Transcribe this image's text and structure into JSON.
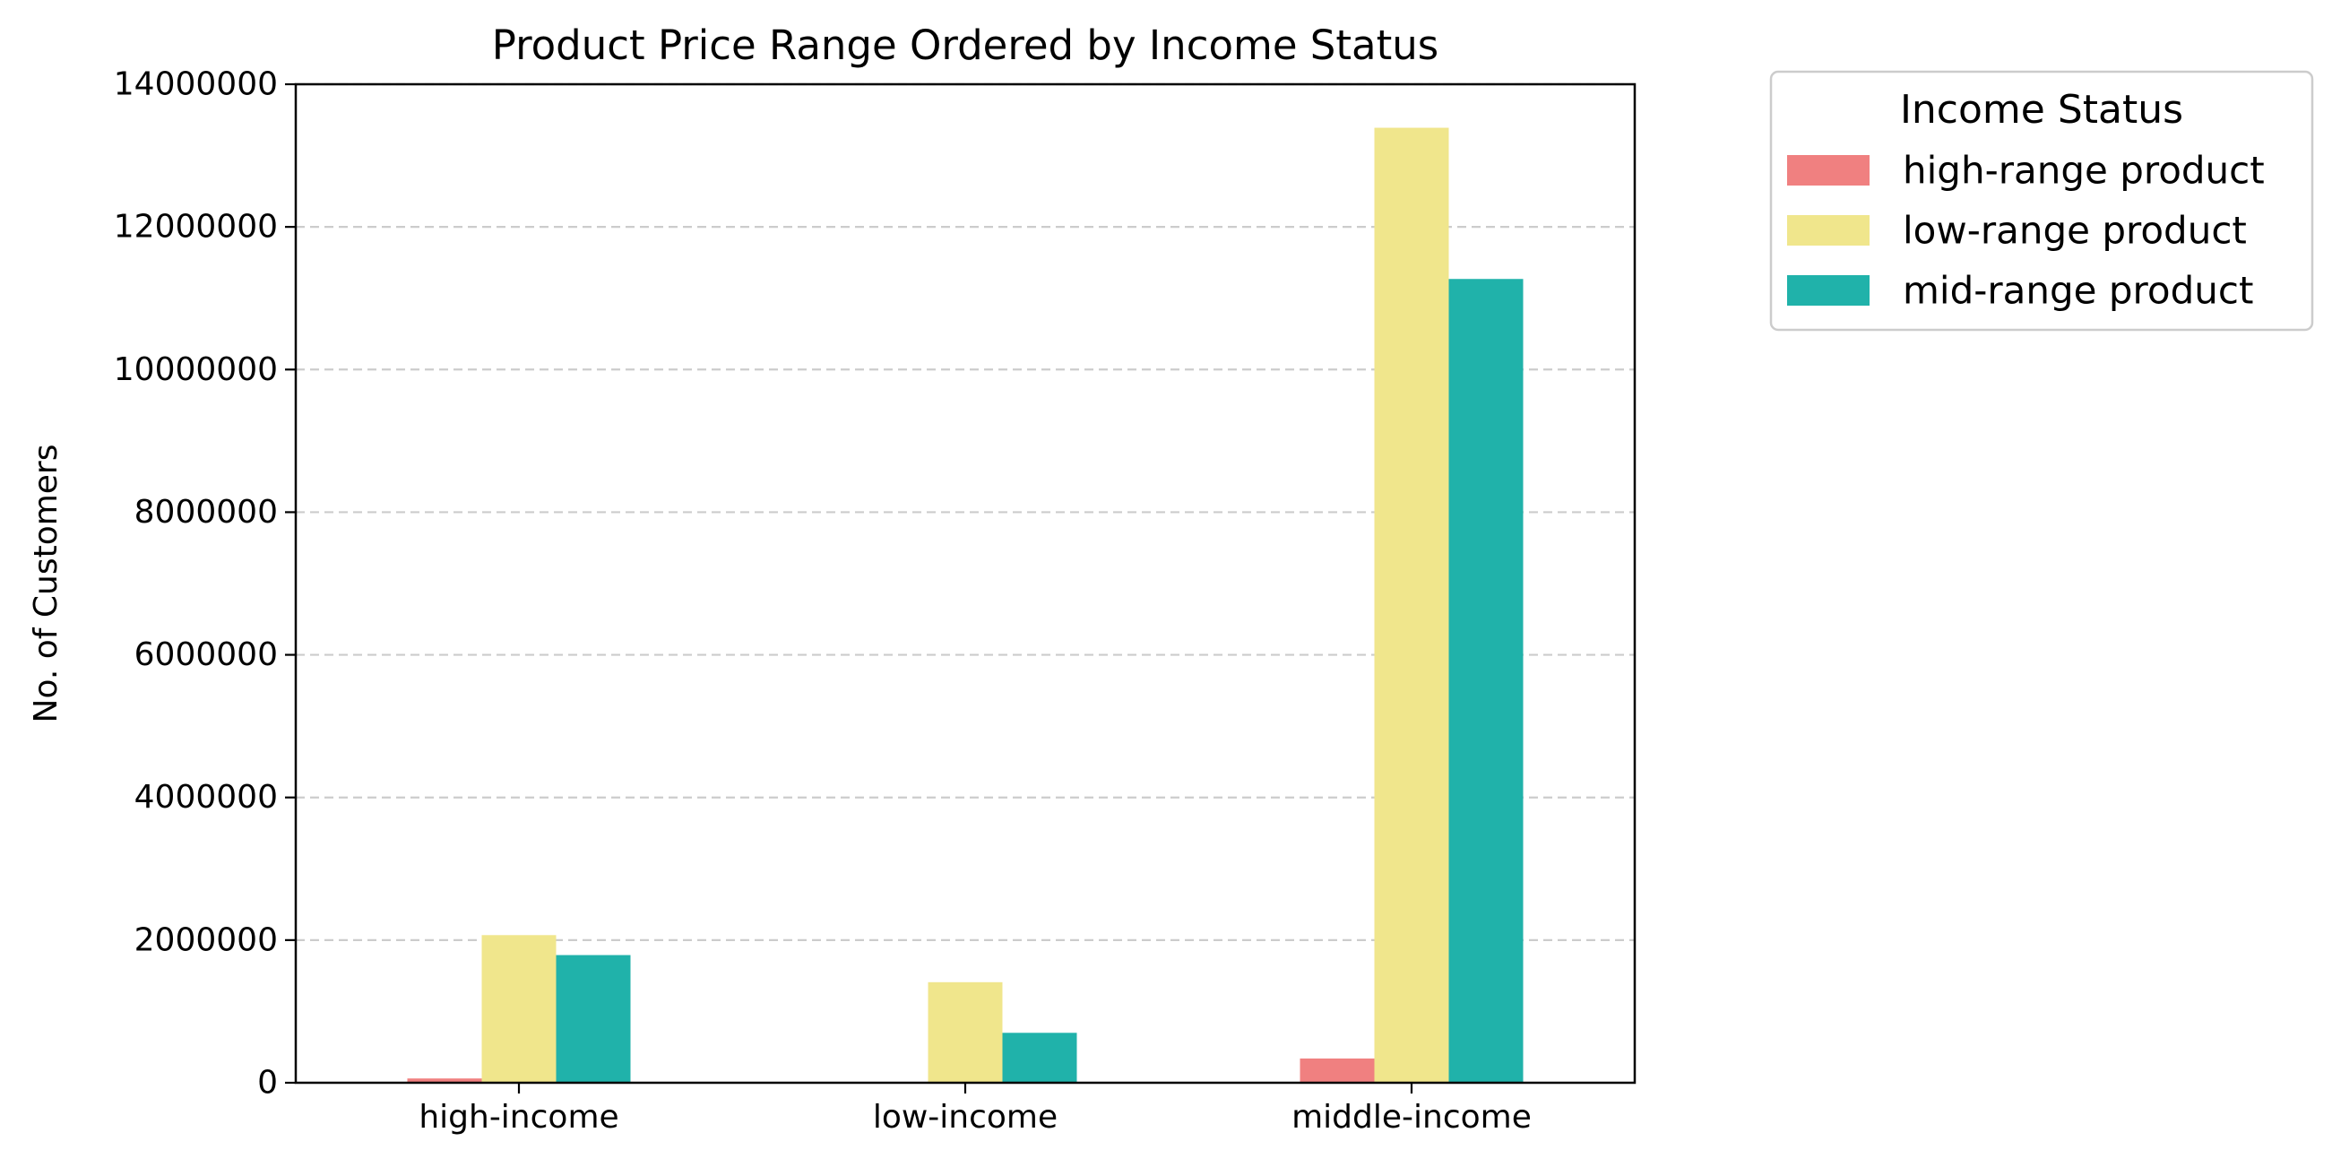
{
  "chart_data": {
    "type": "bar",
    "title": "Product Price Range Ordered by Income Status",
    "xlabel": "",
    "ylabel": "No. of Customers",
    "categories": [
      "high-income",
      "low-income",
      "middle-income"
    ],
    "series": [
      {
        "name": "high-range product",
        "color": "#F08080",
        "values": [
          60000,
          0,
          340000
        ]
      },
      {
        "name": "low-range product",
        "color": "#F0E68C",
        "values": [
          2070000,
          1410000,
          13390000
        ]
      },
      {
        "name": "mid-range product",
        "color": "#20B2AA",
        "values": [
          1790000,
          700000,
          11270000
        ]
      }
    ],
    "ylim": [
      0,
      14000000
    ],
    "yticks": [
      "0",
      "2000000",
      "4000000",
      "6000000",
      "8000000",
      "10000000",
      "12000000",
      "14000000"
    ],
    "grid": "y-dashed",
    "legend": {
      "title": "Income Status",
      "placement": "outside-top-right"
    }
  }
}
